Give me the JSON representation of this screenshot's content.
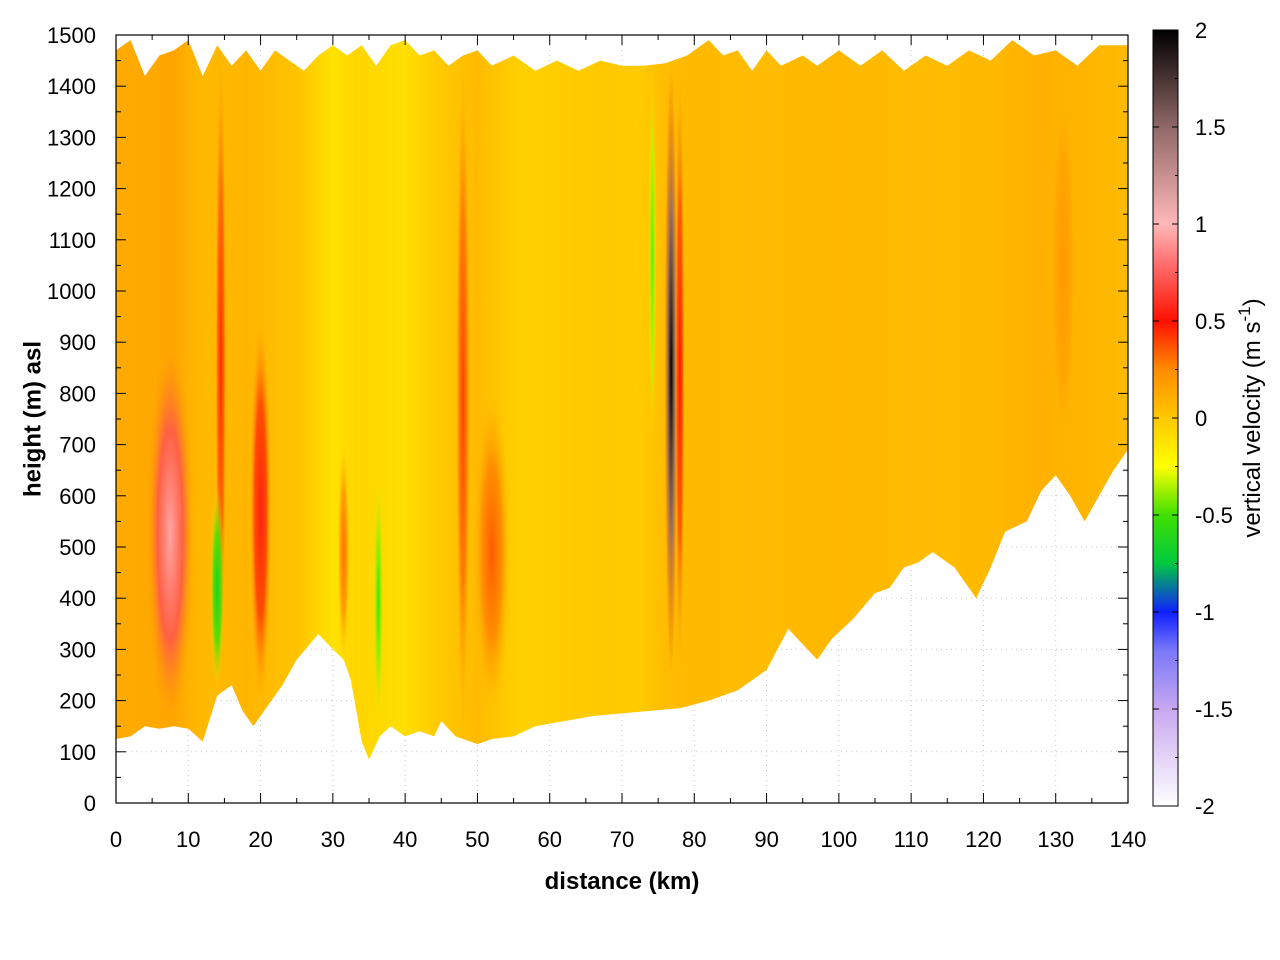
{
  "chart_data": {
    "type": "heatmap",
    "title": "",
    "xlabel": "distance (km)",
    "ylabel": "height (m) asl",
    "xlim": [
      0,
      140
    ],
    "ylim": [
      0,
      1500
    ],
    "x_ticks": [
      0,
      10,
      20,
      30,
      40,
      50,
      60,
      70,
      80,
      90,
      100,
      110,
      120,
      130,
      140
    ],
    "x_tick_labels": [
      "0",
      "10",
      "20",
      "30",
      "40",
      "50",
      "60",
      "70",
      "80",
      "90",
      "100",
      "110",
      "120",
      "130",
      "140"
    ],
    "y_ticks": [
      0,
      100,
      200,
      300,
      400,
      500,
      600,
      700,
      800,
      900,
      1000,
      1100,
      1200,
      1300,
      1400,
      1500
    ],
    "y_tick_labels": [
      "0",
      "100",
      "200",
      "300",
      "400",
      "500",
      "600",
      "700",
      "800",
      "900",
      "1000",
      "1100",
      "1200",
      "1300",
      "1400",
      "1500"
    ],
    "grid": true,
    "colorbar": {
      "label_main": "vertical velocity (m s",
      "label_sup": "-1",
      "label_close": ")",
      "range": [
        -2,
        2
      ],
      "ticks": [
        2,
        1.5,
        1,
        0.5,
        0,
        -0.5,
        -1,
        -1.5,
        -2
      ],
      "tick_labels": [
        "2",
        "1.5",
        "1",
        "0.5",
        "0",
        "-0.5",
        "-1",
        "-1.5",
        "-2"
      ],
      "colors": [
        {
          "v": -2.0,
          "c": "#ffffff"
        },
        {
          "v": -1.5,
          "c": "#c8a8f0"
        },
        {
          "v": -1.2,
          "c": "#7a78f8"
        },
        {
          "v": -1.0,
          "c": "#1020ff"
        },
        {
          "v": -0.75,
          "c": "#00c840"
        },
        {
          "v": -0.5,
          "c": "#40e000"
        },
        {
          "v": -0.25,
          "c": "#ffff00"
        },
        {
          "v": 0.0,
          "c": "#ffc800"
        },
        {
          "v": 0.25,
          "c": "#ff8c00"
        },
        {
          "v": 0.5,
          "c": "#ff1000"
        },
        {
          "v": 0.8,
          "c": "#ff7070"
        },
        {
          "v": 1.0,
          "c": "#ffb8b8"
        },
        {
          "v": 1.5,
          "c": "#906868"
        },
        {
          "v": 2.0,
          "c": "#000000"
        }
      ]
    },
    "features": [
      {
        "x": 7.5,
        "y_min": 150,
        "y_max": 900,
        "w": 0.95,
        "width_km": 3.2
      },
      {
        "x": 14.5,
        "y_min": 230,
        "y_max": 1480,
        "w": 0.45,
        "width_km": 0.8
      },
      {
        "x": 14.0,
        "y_min": 220,
        "y_max": 620,
        "w": -0.65,
        "width_km": 1.0
      },
      {
        "x": 20.0,
        "y_min": 190,
        "y_max": 950,
        "w": 0.55,
        "width_km": 1.5
      },
      {
        "x": 31.5,
        "y_min": 280,
        "y_max": 700,
        "w": 0.3,
        "width_km": 0.8
      },
      {
        "x": 36.3,
        "y_min": 150,
        "y_max": 640,
        "w": -0.5,
        "width_km": 0.7
      },
      {
        "x": 48.0,
        "y_min": 130,
        "y_max": 1450,
        "w": 0.4,
        "width_km": 1.0
      },
      {
        "x": 52.0,
        "y_min": 180,
        "y_max": 800,
        "w": 0.35,
        "width_km": 2.5
      },
      {
        "x": 74.2,
        "y_min": 700,
        "y_max": 1440,
        "w": -0.45,
        "width_km": 0.6
      },
      {
        "x": 76.8,
        "y_min": 250,
        "y_max": 1440,
        "w": 2.0,
        "width_km": 0.9
      },
      {
        "x": 78.0,
        "y_min": 250,
        "y_max": 1440,
        "w": 0.5,
        "width_km": 0.7
      },
      {
        "x": 131.0,
        "y_min": 640,
        "y_max": 1450,
        "w": 0.2,
        "width_km": 2.0
      }
    ],
    "terrain_bottom": [
      [
        0,
        125
      ],
      [
        2,
        130
      ],
      [
        4,
        150
      ],
      [
        6,
        145
      ],
      [
        8,
        150
      ],
      [
        10,
        145
      ],
      [
        12,
        120
      ],
      [
        14,
        210
      ],
      [
        16,
        230
      ],
      [
        17.5,
        180
      ],
      [
        19,
        150
      ],
      [
        21,
        190
      ],
      [
        23,
        230
      ],
      [
        25,
        280
      ],
      [
        28,
        330
      ],
      [
        30,
        300
      ],
      [
        31.5,
        280
      ],
      [
        32.5,
        240
      ],
      [
        34,
        120
      ],
      [
        35,
        85
      ],
      [
        36.5,
        130
      ],
      [
        38,
        150
      ],
      [
        40,
        130
      ],
      [
        42,
        140
      ],
      [
        44,
        130
      ],
      [
        45,
        160
      ],
      [
        47,
        130
      ],
      [
        50,
        115
      ],
      [
        52,
        125
      ],
      [
        55,
        130
      ],
      [
        58,
        150
      ],
      [
        62,
        160
      ],
      [
        66,
        170
      ],
      [
        70,
        175
      ],
      [
        74,
        180
      ],
      [
        78,
        185
      ],
      [
        82,
        200
      ],
      [
        86,
        220
      ],
      [
        90,
        260
      ],
      [
        93,
        340
      ],
      [
        95,
        310
      ],
      [
        97,
        280
      ],
      [
        99,
        320
      ],
      [
        102,
        360
      ],
      [
        105,
        410
      ],
      [
        107,
        420
      ],
      [
        109,
        460
      ],
      [
        111,
        470
      ],
      [
        113,
        490
      ],
      [
        116,
        460
      ],
      [
        119,
        400
      ],
      [
        121,
        460
      ],
      [
        123,
        530
      ],
      [
        126,
        550
      ],
      [
        128,
        610
      ],
      [
        130,
        640
      ],
      [
        132,
        600
      ],
      [
        134,
        550
      ],
      [
        136,
        600
      ],
      [
        138,
        650
      ],
      [
        140,
        690
      ]
    ],
    "terrain_top": [
      [
        0,
        1470
      ],
      [
        2,
        1490
      ],
      [
        4,
        1420
      ],
      [
        6,
        1460
      ],
      [
        8,
        1470
      ],
      [
        10,
        1490
      ],
      [
        12,
        1420
      ],
      [
        14,
        1480
      ],
      [
        16,
        1440
      ],
      [
        18,
        1470
      ],
      [
        20,
        1430
      ],
      [
        22,
        1470
      ],
      [
        24,
        1450
      ],
      [
        26,
        1430
      ],
      [
        28,
        1460
      ],
      [
        30,
        1480
      ],
      [
        32,
        1460
      ],
      [
        34,
        1480
      ],
      [
        36,
        1440
      ],
      [
        38,
        1480
      ],
      [
        40,
        1490
      ],
      [
        42,
        1460
      ],
      [
        44,
        1470
      ],
      [
        46,
        1440
      ],
      [
        48,
        1460
      ],
      [
        50,
        1470
      ],
      [
        52,
        1440
      ],
      [
        55,
        1460
      ],
      [
        58,
        1430
      ],
      [
        61,
        1450
      ],
      [
        64,
        1430
      ],
      [
        67,
        1450
      ],
      [
        70,
        1440
      ],
      [
        73,
        1440
      ],
      [
        76,
        1445
      ],
      [
        79,
        1460
      ],
      [
        82,
        1490
      ],
      [
        84,
        1460
      ],
      [
        86,
        1470
      ],
      [
        88,
        1430
      ],
      [
        90,
        1470
      ],
      [
        92,
        1440
      ],
      [
        95,
        1460
      ],
      [
        97,
        1440
      ],
      [
        100,
        1470
      ],
      [
        103,
        1440
      ],
      [
        106,
        1470
      ],
      [
        109,
        1430
      ],
      [
        112,
        1460
      ],
      [
        115,
        1440
      ],
      [
        118,
        1470
      ],
      [
        121,
        1450
      ],
      [
        124,
        1490
      ],
      [
        127,
        1460
      ],
      [
        130,
        1470
      ],
      [
        133,
        1440
      ],
      [
        136,
        1480
      ],
      [
        140,
        1480
      ]
    ]
  }
}
